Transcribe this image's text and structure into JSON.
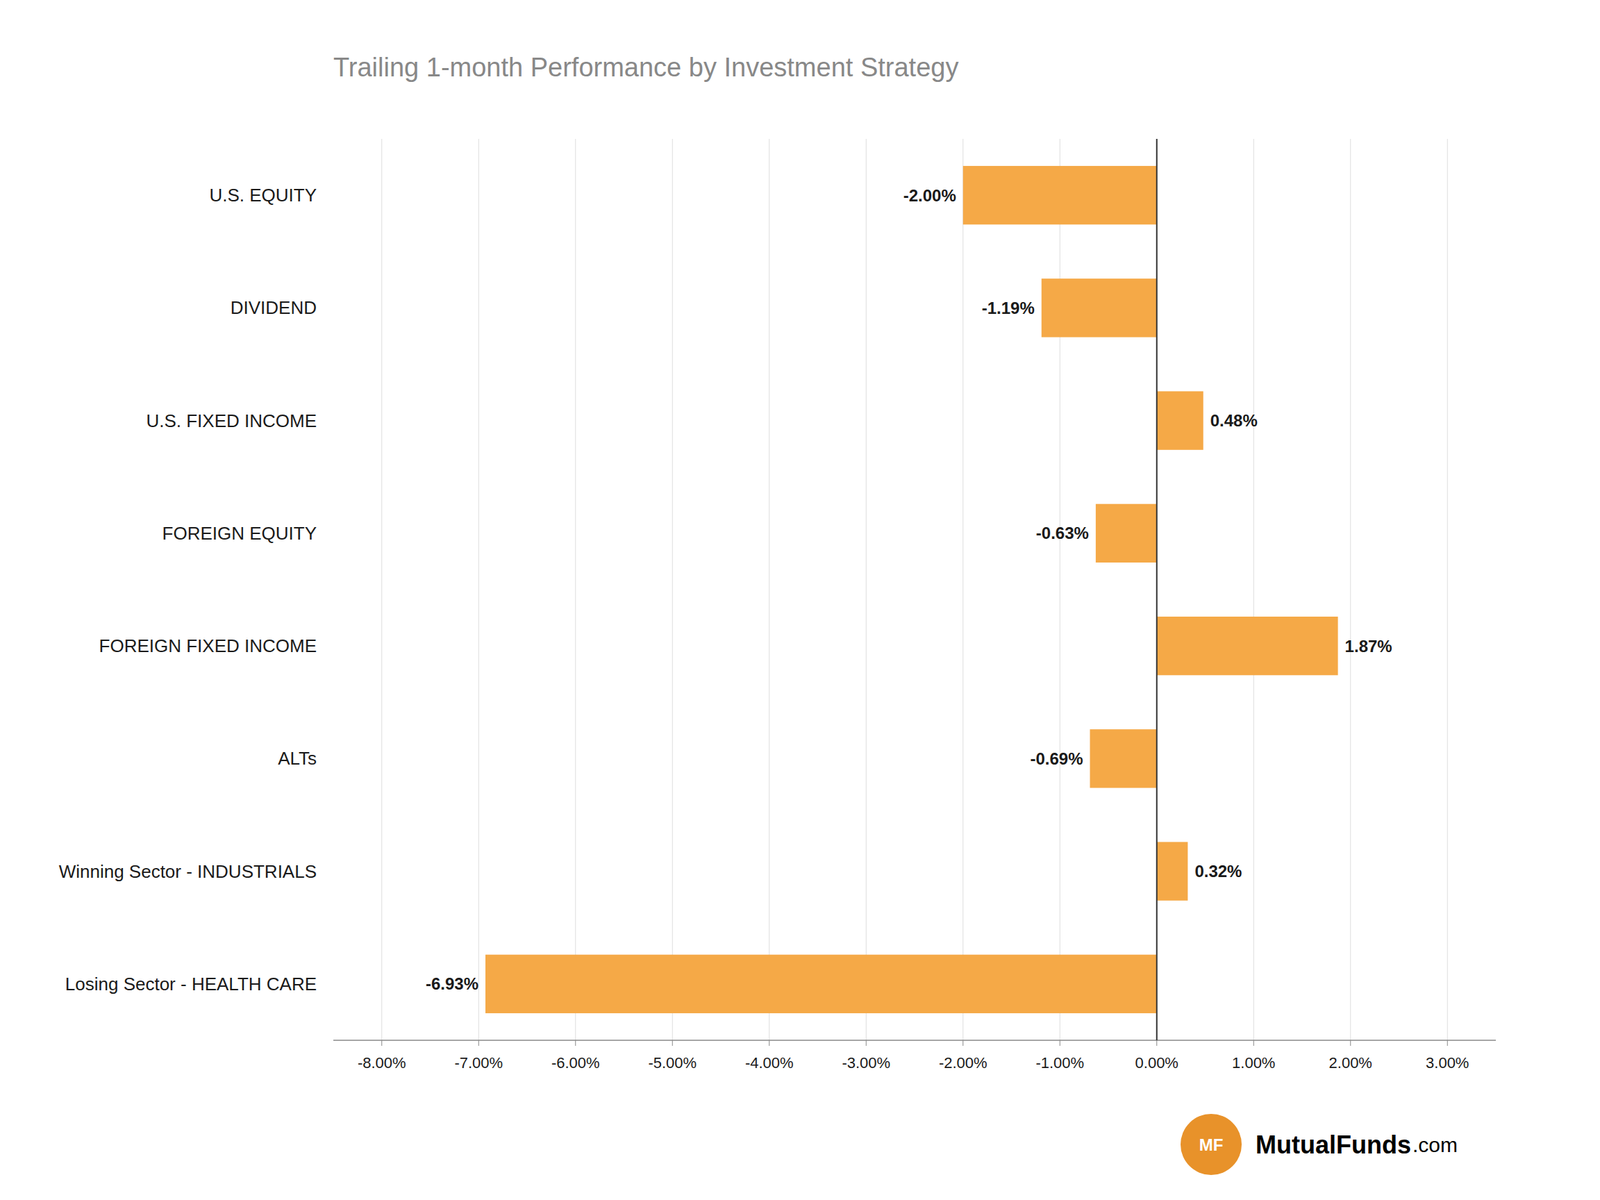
{
  "chart_data": {
    "type": "bar",
    "orientation": "horizontal",
    "title": "Trailing 1-month Performance by Investment Strategy",
    "categories": [
      "U.S. EQUITY",
      "DIVIDEND",
      "U.S. FIXED INCOME",
      "FOREIGN EQUITY",
      "FOREIGN FIXED INCOME",
      "ALTs",
      "Winning Sector - INDUSTRIALS",
      "Losing Sector - HEALTH CARE"
    ],
    "values": [
      -2.0,
      -1.19,
      0.48,
      -0.63,
      1.87,
      -0.69,
      0.32,
      -6.93
    ],
    "value_labels": [
      "-2.00%",
      "-1.19%",
      "0.48%",
      "-0.63%",
      "1.87%",
      "-0.69%",
      "0.32%",
      "-6.93%"
    ],
    "data_labels": true,
    "color": "#F5A947",
    "xlim": [
      -8.5,
      3.5
    ],
    "xticks": [
      {
        "value": -8.0,
        "label": "-8.00%"
      },
      {
        "value": -7.0,
        "label": "-7.00%"
      },
      {
        "value": -6.0,
        "label": "-6.00%"
      },
      {
        "value": -5.0,
        "label": "-5.00%"
      },
      {
        "value": -4.0,
        "label": "-4.00%"
      },
      {
        "value": -3.0,
        "label": "-3.00%"
      },
      {
        "value": -2.0,
        "label": "-2.00%"
      },
      {
        "value": -1.0,
        "label": "-1.00%"
      },
      {
        "value": 0.0,
        "label": "0.00%"
      },
      {
        "value": 1.0,
        "label": "1.00%"
      },
      {
        "value": 2.0,
        "label": "2.00%"
      },
      {
        "value": 3.0,
        "label": "3.00%"
      }
    ],
    "grid": true,
    "annotations": [
      "MF",
      "MutualFunds",
      ".com"
    ]
  }
}
